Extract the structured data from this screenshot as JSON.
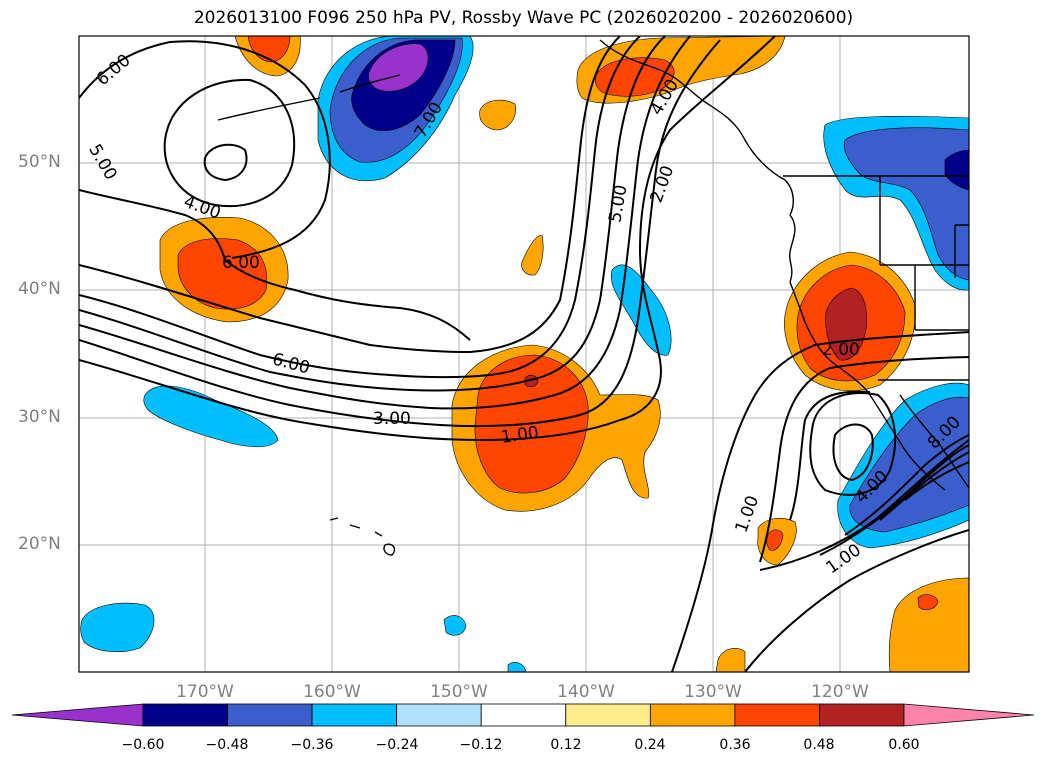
{
  "title": "2026013100 F096 250 hPa PV, Rossby Wave PC (2026020200 - 2026020600)",
  "lat_labels": [
    "50°N",
    "40°N",
    "30°N",
    "20°N"
  ],
  "lon_labels": [
    "170°W",
    "160°W",
    "150°W",
    "140°W",
    "130°W",
    "120°W"
  ],
  "colorbar": {
    "ticks": [
      "−0.60",
      "−0.48",
      "−0.36",
      "−0.24",
      "−0.12",
      "0.12",
      "0.24",
      "0.36",
      "0.48",
      "0.60"
    ],
    "colors": [
      "#9932cc",
      "#00008b",
      "#3a5fcd",
      "#00bfff",
      "#b0e2ff",
      "#ffffff",
      "#ffec8b",
      "#ffa500",
      "#ff4500",
      "#b22222",
      "#ff82ab"
    ]
  },
  "contour_labels": [
    "6.00",
    "5.00",
    "4.00",
    "6.00",
    "7.00",
    "4.00",
    "5.00",
    "2.00",
    "6.00",
    "3.00",
    "1.00",
    "1.00",
    "2.00",
    "4.00",
    "8.00",
    "1.00"
  ]
}
